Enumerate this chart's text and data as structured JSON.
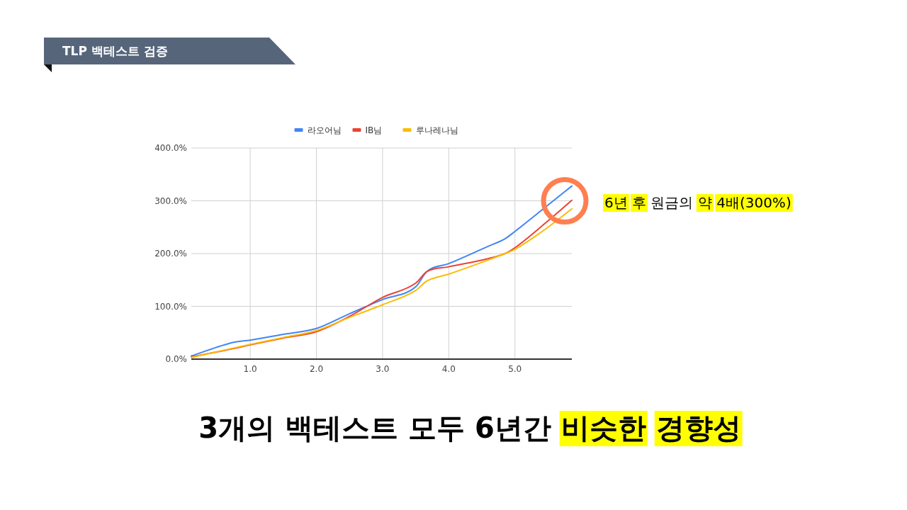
{
  "chart_data": {
    "type": "line",
    "title": "TLP 백테스트 검증",
    "x": [
      0.11,
      0.75,
      1,
      1.5,
      2,
      2.5,
      3,
      3.5,
      3.67,
      4,
      4.58,
      4.85,
      5,
      5.5,
      5.86
    ],
    "series": [
      {
        "name": "라오어님",
        "color": "#4285f4",
        "values": [
          6,
          32,
          36,
          47,
          58,
          86,
          113,
          137,
          166,
          181,
          213,
          228,
          242,
          292,
          328
        ]
      },
      {
        "name": "IB님",
        "color": "#ea4335",
        "values": [
          4,
          20,
          27,
          40,
          52,
          81,
          117,
          144,
          166,
          175,
          190,
          200,
          211,
          262,
          301
        ]
      },
      {
        "name": "루나레나님",
        "color": "#fbbc04",
        "values": [
          3,
          21,
          28,
          41,
          54,
          79,
          103,
          130,
          148,
          161,
          187,
          200,
          208,
          250,
          285
        ]
      }
    ],
    "xlim": [
      0.11,
      5.86
    ],
    "xticks": [
      {
        "value": 1,
        "label": "1.0"
      },
      {
        "value": 2,
        "label": "2.0"
      },
      {
        "value": 3,
        "label": "3.0"
      },
      {
        "value": 4,
        "label": "4.0"
      },
      {
        "value": 5,
        "label": "5.0"
      }
    ],
    "ylim": [
      0,
      400
    ],
    "yticks": [
      {
        "value": 0,
        "label": "0.0%"
      },
      {
        "value": 100,
        "label": "100.0%"
      },
      {
        "value": 200,
        "label": "200.0%"
      },
      {
        "value": 300,
        "label": "300.0%"
      },
      {
        "value": 400,
        "label": "400.0%"
      }
    ],
    "grid": true,
    "legend": "top",
    "marker": "none",
    "line_style": "solid",
    "annotations": [
      {
        "text": "6년 후 원금의 약 4배(300%)",
        "x": 5.86,
        "y": 300
      },
      "3개의 백테스트 모두 6년간 비슷한 경향성"
    ]
  }
}
